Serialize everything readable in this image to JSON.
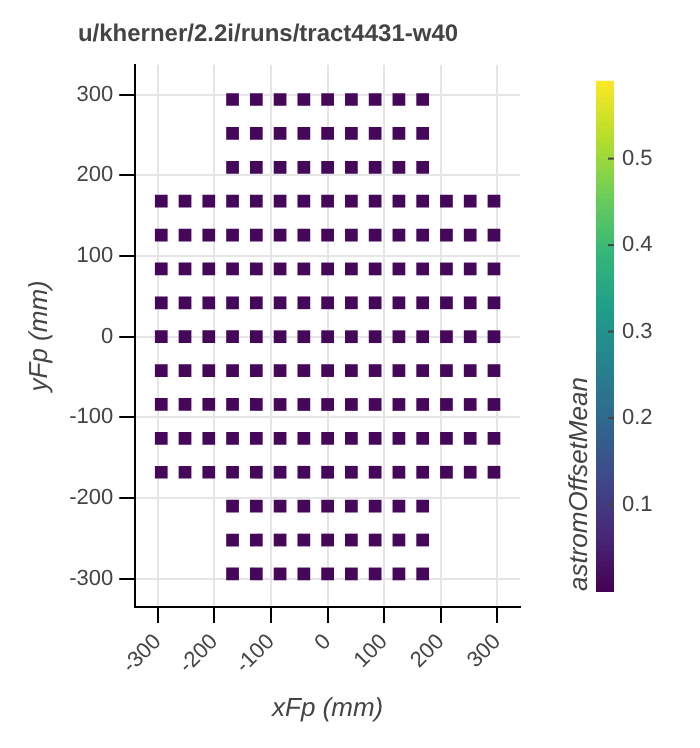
{
  "chart_data": {
    "type": "scatter",
    "title": "u/kherner/2.2i/runs/tract4431-w40",
    "xlabel": "xFp (mm)",
    "ylabel": "yFp (mm)",
    "clabel": "astromOffsetMean",
    "x": [
      -168,
      -126,
      -84,
      -42,
      0,
      42,
      84,
      126,
      168,
      -168,
      -126,
      -84,
      -42,
      0,
      42,
      84,
      126,
      168,
      -168,
      -126,
      -84,
      -42,
      0,
      42,
      84,
      126,
      168,
      -294,
      -252,
      -210,
      -168,
      -126,
      -84,
      -42,
      0,
      42,
      84,
      126,
      168,
      210,
      252,
      294,
      -294,
      -252,
      -210,
      -168,
      -126,
      -84,
      -42,
      0,
      42,
      84,
      126,
      168,
      210,
      252,
      294,
      -294,
      -252,
      -210,
      -168,
      -126,
      -84,
      -42,
      0,
      42,
      84,
      126,
      168,
      210,
      252,
      294,
      -294,
      -252,
      -210,
      -168,
      -126,
      -84,
      -42,
      0,
      42,
      84,
      126,
      168,
      210,
      252,
      294,
      -294,
      -252,
      -210,
      -168,
      -126,
      -84,
      -42,
      0,
      42,
      84,
      126,
      168,
      210,
      252,
      294,
      -294,
      -252,
      -210,
      -168,
      -126,
      -84,
      -42,
      0,
      42,
      84,
      126,
      168,
      210,
      252,
      294,
      -294,
      -252,
      -210,
      -168,
      -126,
      -84,
      -42,
      0,
      42,
      84,
      126,
      168,
      210,
      252,
      294,
      -294,
      -252,
      -210,
      -168,
      -126,
      -84,
      -42,
      0,
      42,
      84,
      126,
      168,
      210,
      252,
      294,
      -294,
      -252,
      -210,
      -168,
      -126,
      -84,
      -42,
      0,
      42,
      84,
      126,
      168,
      210,
      252,
      294,
      -168,
      -126,
      -84,
      -42,
      0,
      42,
      84,
      126,
      168,
      -168,
      -126,
      -84,
      -42,
      0,
      42,
      84,
      126,
      168,
      -168,
      -126,
      -84,
      -42,
      0,
      42,
      84,
      126,
      168
    ],
    "values": [
      294,
      294,
      294,
      294,
      294,
      294,
      294,
      294,
      294,
      252,
      252,
      252,
      252,
      252,
      252,
      252,
      252,
      252,
      210,
      210,
      210,
      210,
      210,
      210,
      210,
      210,
      210,
      168,
      168,
      168,
      168,
      168,
      168,
      168,
      168,
      168,
      168,
      168,
      168,
      168,
      168,
      168,
      126,
      126,
      126,
      126,
      126,
      126,
      126,
      126,
      126,
      126,
      126,
      126,
      126,
      126,
      126,
      84,
      84,
      84,
      84,
      84,
      84,
      84,
      84,
      84,
      84,
      84,
      84,
      84,
      84,
      84,
      42,
      42,
      42,
      42,
      42,
      42,
      42,
      42,
      42,
      42,
      42,
      42,
      42,
      42,
      42,
      0,
      0,
      0,
      0,
      0,
      0,
      0,
      0,
      0,
      0,
      0,
      0,
      0,
      0,
      0,
      -42,
      -42,
      -42,
      -42,
      -42,
      -42,
      -42,
      -42,
      -42,
      -42,
      -42,
      -42,
      -42,
      -42,
      -42,
      -84,
      -84,
      -84,
      -84,
      -84,
      -84,
      -84,
      -84,
      -84,
      -84,
      -84,
      -84,
      -84,
      -84,
      -84,
      -126,
      -126,
      -126,
      -126,
      -126,
      -126,
      -126,
      -126,
      -126,
      -126,
      -126,
      -126,
      -126,
      -126,
      -126,
      -168,
      -168,
      -168,
      -168,
      -168,
      -168,
      -168,
      -168,
      -168,
      -168,
      -168,
      -168,
      -168,
      -168,
      -168,
      -210,
      -210,
      -210,
      -210,
      -210,
      -210,
      -210,
      -210,
      -210,
      -252,
      -252,
      -252,
      -252,
      -252,
      -252,
      -252,
      -252,
      -252,
      -294,
      -294,
      -294,
      -294,
      -294,
      -294,
      -294,
      -294,
      -294
    ],
    "cvalues": [
      0.01,
      0.01,
      0.01,
      0.01,
      0.01,
      0.01,
      0.01,
      0.01,
      0.01,
      0.01,
      0.01,
      0.01,
      0.01,
      0.01,
      0.01,
      0.01,
      0.01,
      0.01,
      0.01,
      0.01,
      0.01,
      0.01,
      0.01,
      0.01,
      0.01,
      0.01,
      0.01,
      0.01,
      0.01,
      0.01,
      0.01,
      0.01,
      0.01,
      0.01,
      0.01,
      0.01,
      0.01,
      0.01,
      0.01,
      0.01,
      0.01,
      0.01,
      0.01,
      0.01,
      0.01,
      0.01,
      0.01,
      0.01,
      0.01,
      0.01,
      0.01,
      0.01,
      0.01,
      0.01,
      0.01,
      0.01,
      0.01,
      0.01,
      0.01,
      0.01,
      0.01,
      0.01,
      0.01,
      0.01,
      0.01,
      0.01,
      0.01,
      0.01,
      0.01,
      0.01,
      0.01,
      0.01,
      0.01,
      0.01,
      0.01,
      0.01,
      0.01,
      0.01,
      0.01,
      0.01,
      0.01,
      0.01,
      0.01,
      0.01,
      0.01,
      0.01,
      0.01,
      0.01,
      0.01,
      0.01,
      0.01,
      0.01,
      0.01,
      0.01,
      0.01,
      0.01,
      0.01,
      0.01,
      0.01,
      0.01,
      0.01,
      0.01,
      0.01,
      0.01,
      0.01,
      0.01,
      0.01,
      0.01,
      0.01,
      0.01,
      0.01,
      0.01,
      0.01,
      0.01,
      0.01,
      0.01,
      0.01,
      0.01,
      0.01,
      0.01,
      0.01,
      0.01,
      0.01,
      0.01,
      0.01,
      0.01,
      0.01,
      0.01,
      0.01,
      0.01,
      0.01,
      0.01,
      0.01,
      0.01,
      0.01,
      0.01,
      0.01,
      0.01,
      0.01,
      0.01,
      0.01,
      0.01,
      0.01,
      0.01,
      0.01,
      0.01,
      0.01,
      0.01,
      0.01,
      0.01,
      0.01,
      0.01,
      0.01,
      0.01,
      0.01,
      0.01,
      0.01,
      0.01,
      0.01,
      0.01,
      0.01,
      0.01,
      0.01,
      0.01,
      0.01,
      0.01,
      0.01,
      0.01,
      0.01,
      0.01,
      0.01,
      0.01,
      0.01,
      0.01,
      0.01,
      0.01,
      0.01,
      0.01,
      0.01,
      0.01,
      0.01,
      0.01,
      0.01,
      0.01,
      0.01,
      0.01,
      0.01,
      0.01,
      0.01
    ],
    "xlim": [
      -340,
      340
    ],
    "xticks": [
      -300,
      -200,
      -100,
      0,
      100,
      200,
      300
    ],
    "ylim": [
      -335,
      337
    ],
    "yticks": [
      -300,
      -200,
      -100,
      0,
      100,
      200,
      300
    ],
    "clim": [
      0,
      0.59
    ],
    "cticks": [
      0.1,
      0.2,
      0.3,
      0.4,
      0.5
    ],
    "grid": true,
    "marker": "square"
  }
}
